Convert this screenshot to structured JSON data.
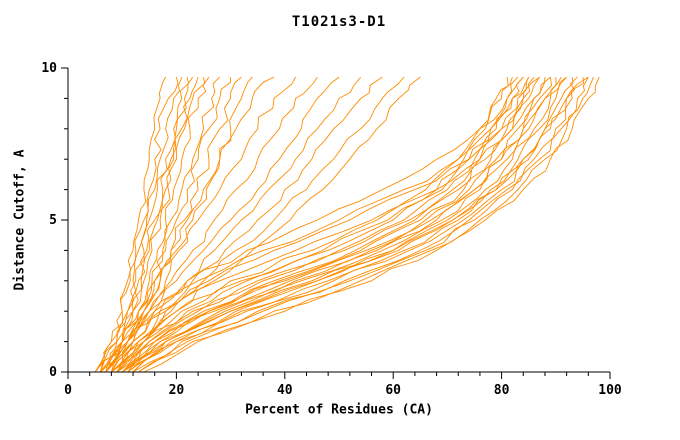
{
  "colors": {
    "line": "#ff8c00",
    "axis": "#000000",
    "background": "#ffffff"
  },
  "chart_data": {
    "type": "line",
    "title": "T1021s3-D1",
    "xlabel": "Percent of Residues (CA)",
    "ylabel": "Distance Cutoff, A",
    "xlim": [
      0,
      100
    ],
    "ylim": [
      0,
      10
    ],
    "x_major_ticks": [
      0,
      20,
      40,
      60,
      80,
      100
    ],
    "x_minor_step": 4,
    "y_major_ticks": [
      0,
      5,
      10
    ],
    "y_minor_step": 1,
    "grid": false,
    "legend": "none",
    "y_levels": [
      0,
      1,
      2,
      3,
      4,
      5,
      6,
      7,
      8,
      9,
      9.7
    ],
    "series_x_at_y": [
      [
        5,
        8,
        10,
        11,
        12,
        13,
        14,
        15,
        16,
        17,
        18
      ],
      [
        5,
        8,
        10,
        11.5,
        12.5,
        14,
        15,
        16,
        17,
        18.5,
        20
      ],
      [
        6,
        9,
        11,
        12,
        13,
        14.5,
        16,
        17,
        18,
        19.5,
        21
      ],
      [
        6,
        9,
        11,
        12.5,
        14,
        15,
        16.5,
        18,
        19.5,
        21,
        22
      ],
      [
        7,
        10,
        12,
        13,
        14.5,
        16,
        17.5,
        19,
        20,
        21.5,
        23
      ],
      [
        7,
        10,
        12,
        13.5,
        15,
        16.5,
        18,
        19.5,
        21,
        22.5,
        24
      ],
      [
        5,
        9,
        12,
        14,
        15.5,
        17,
        18.5,
        20,
        21.5,
        23,
        25
      ],
      [
        6,
        10,
        13,
        15,
        16.5,
        18,
        19.5,
        21,
        22.5,
        24,
        26
      ],
      [
        6,
        10,
        13,
        15.5,
        17.5,
        19,
        21,
        23,
        25,
        26.5,
        28
      ],
      [
        7,
        11,
        14,
        16,
        18,
        20,
        22,
        24,
        26,
        28,
        30
      ],
      [
        7,
        11,
        14,
        17,
        19,
        21.5,
        24,
        26,
        28,
        30,
        32
      ],
      [
        8,
        12,
        15,
        18,
        20.5,
        23,
        25.5,
        28,
        30,
        32,
        34
      ],
      [
        6,
        10,
        13,
        16,
        19,
        22,
        25,
        28,
        31,
        34,
        38
      ],
      [
        7,
        11,
        14,
        17,
        20,
        24,
        28,
        32,
        35,
        38,
        42
      ],
      [
        7,
        11,
        15,
        19,
        23,
        27,
        31,
        35,
        39,
        42,
        46
      ],
      [
        8,
        12,
        16,
        20,
        25,
        30,
        35,
        39,
        43,
        46,
        50
      ],
      [
        8,
        13,
        17,
        22,
        27,
        32,
        37,
        42,
        46,
        50,
        54
      ],
      [
        8,
        13,
        18,
        23,
        29,
        35,
        40,
        45,
        49,
        54,
        58
      ],
      [
        9,
        14,
        19,
        25,
        31,
        38,
        44,
        49,
        54,
        58,
        62
      ],
      [
        9,
        14,
        20,
        27,
        34,
        41,
        47,
        52,
        57,
        61,
        65
      ],
      [
        8,
        13,
        20,
        30,
        45,
        57,
        66,
        72,
        76,
        79,
        81
      ],
      [
        8,
        14,
        21,
        32,
        47,
        59,
        68,
        73,
        77,
        80,
        82
      ],
      [
        9,
        14,
        22,
        33,
        48,
        60,
        69,
        74,
        78,
        81,
        83
      ],
      [
        9,
        15,
        23,
        35,
        50,
        62,
        70,
        75,
        79,
        82,
        84
      ],
      [
        9,
        15,
        24,
        36,
        51,
        63,
        71,
        76,
        80,
        83,
        85
      ],
      [
        10,
        16,
        25,
        38,
        53,
        64,
        72,
        77,
        81,
        84,
        86
      ],
      [
        10,
        16,
        26,
        39,
        54,
        65,
        73,
        78,
        82,
        85,
        87
      ],
      [
        10,
        17,
        27,
        41,
        56,
        66,
        74,
        79,
        83,
        86,
        88
      ],
      [
        10,
        17,
        28,
        42,
        57,
        68,
        75,
        80,
        84,
        87,
        89
      ],
      [
        11,
        18,
        29,
        43,
        58,
        69,
        76,
        81,
        85,
        88,
        90
      ],
      [
        11,
        18,
        30,
        45,
        60,
        70,
        77,
        82,
        86,
        89,
        91
      ],
      [
        11,
        19,
        31,
        46,
        61,
        71,
        78,
        83,
        87,
        90,
        92
      ],
      [
        12,
        20,
        32,
        48,
        62,
        72,
        79,
        84,
        88,
        91,
        93
      ],
      [
        12,
        20,
        33,
        49,
        63,
        73,
        80,
        85,
        89,
        92,
        94
      ],
      [
        12,
        21,
        35,
        51,
        65,
        74,
        81,
        86,
        90,
        93,
        95
      ],
      [
        13,
        22,
        36,
        52,
        66,
        75,
        82,
        87,
        91,
        94,
        96
      ],
      [
        13,
        23,
        38,
        54,
        67,
        76,
        83,
        88,
        92,
        95,
        97
      ],
      [
        14,
        24,
        40,
        56,
        68,
        77,
        84,
        89,
        93,
        96,
        98
      ],
      [
        7,
        11,
        16,
        24,
        36,
        50,
        62,
        72,
        78,
        82,
        85
      ],
      [
        7,
        12,
        17,
        26,
        38,
        52,
        64,
        74,
        80,
        84,
        87
      ],
      [
        8,
        12,
        18,
        28,
        42,
        56,
        68,
        76,
        82,
        86,
        89
      ],
      [
        6,
        10,
        15,
        22,
        33,
        46,
        58,
        68,
        76,
        81,
        84
      ],
      [
        9,
        16,
        26,
        40,
        55,
        67,
        75,
        80,
        84,
        88,
        92
      ],
      [
        10,
        18,
        30,
        46,
        60,
        71,
        79,
        84,
        88,
        92,
        96
      ]
    ]
  }
}
